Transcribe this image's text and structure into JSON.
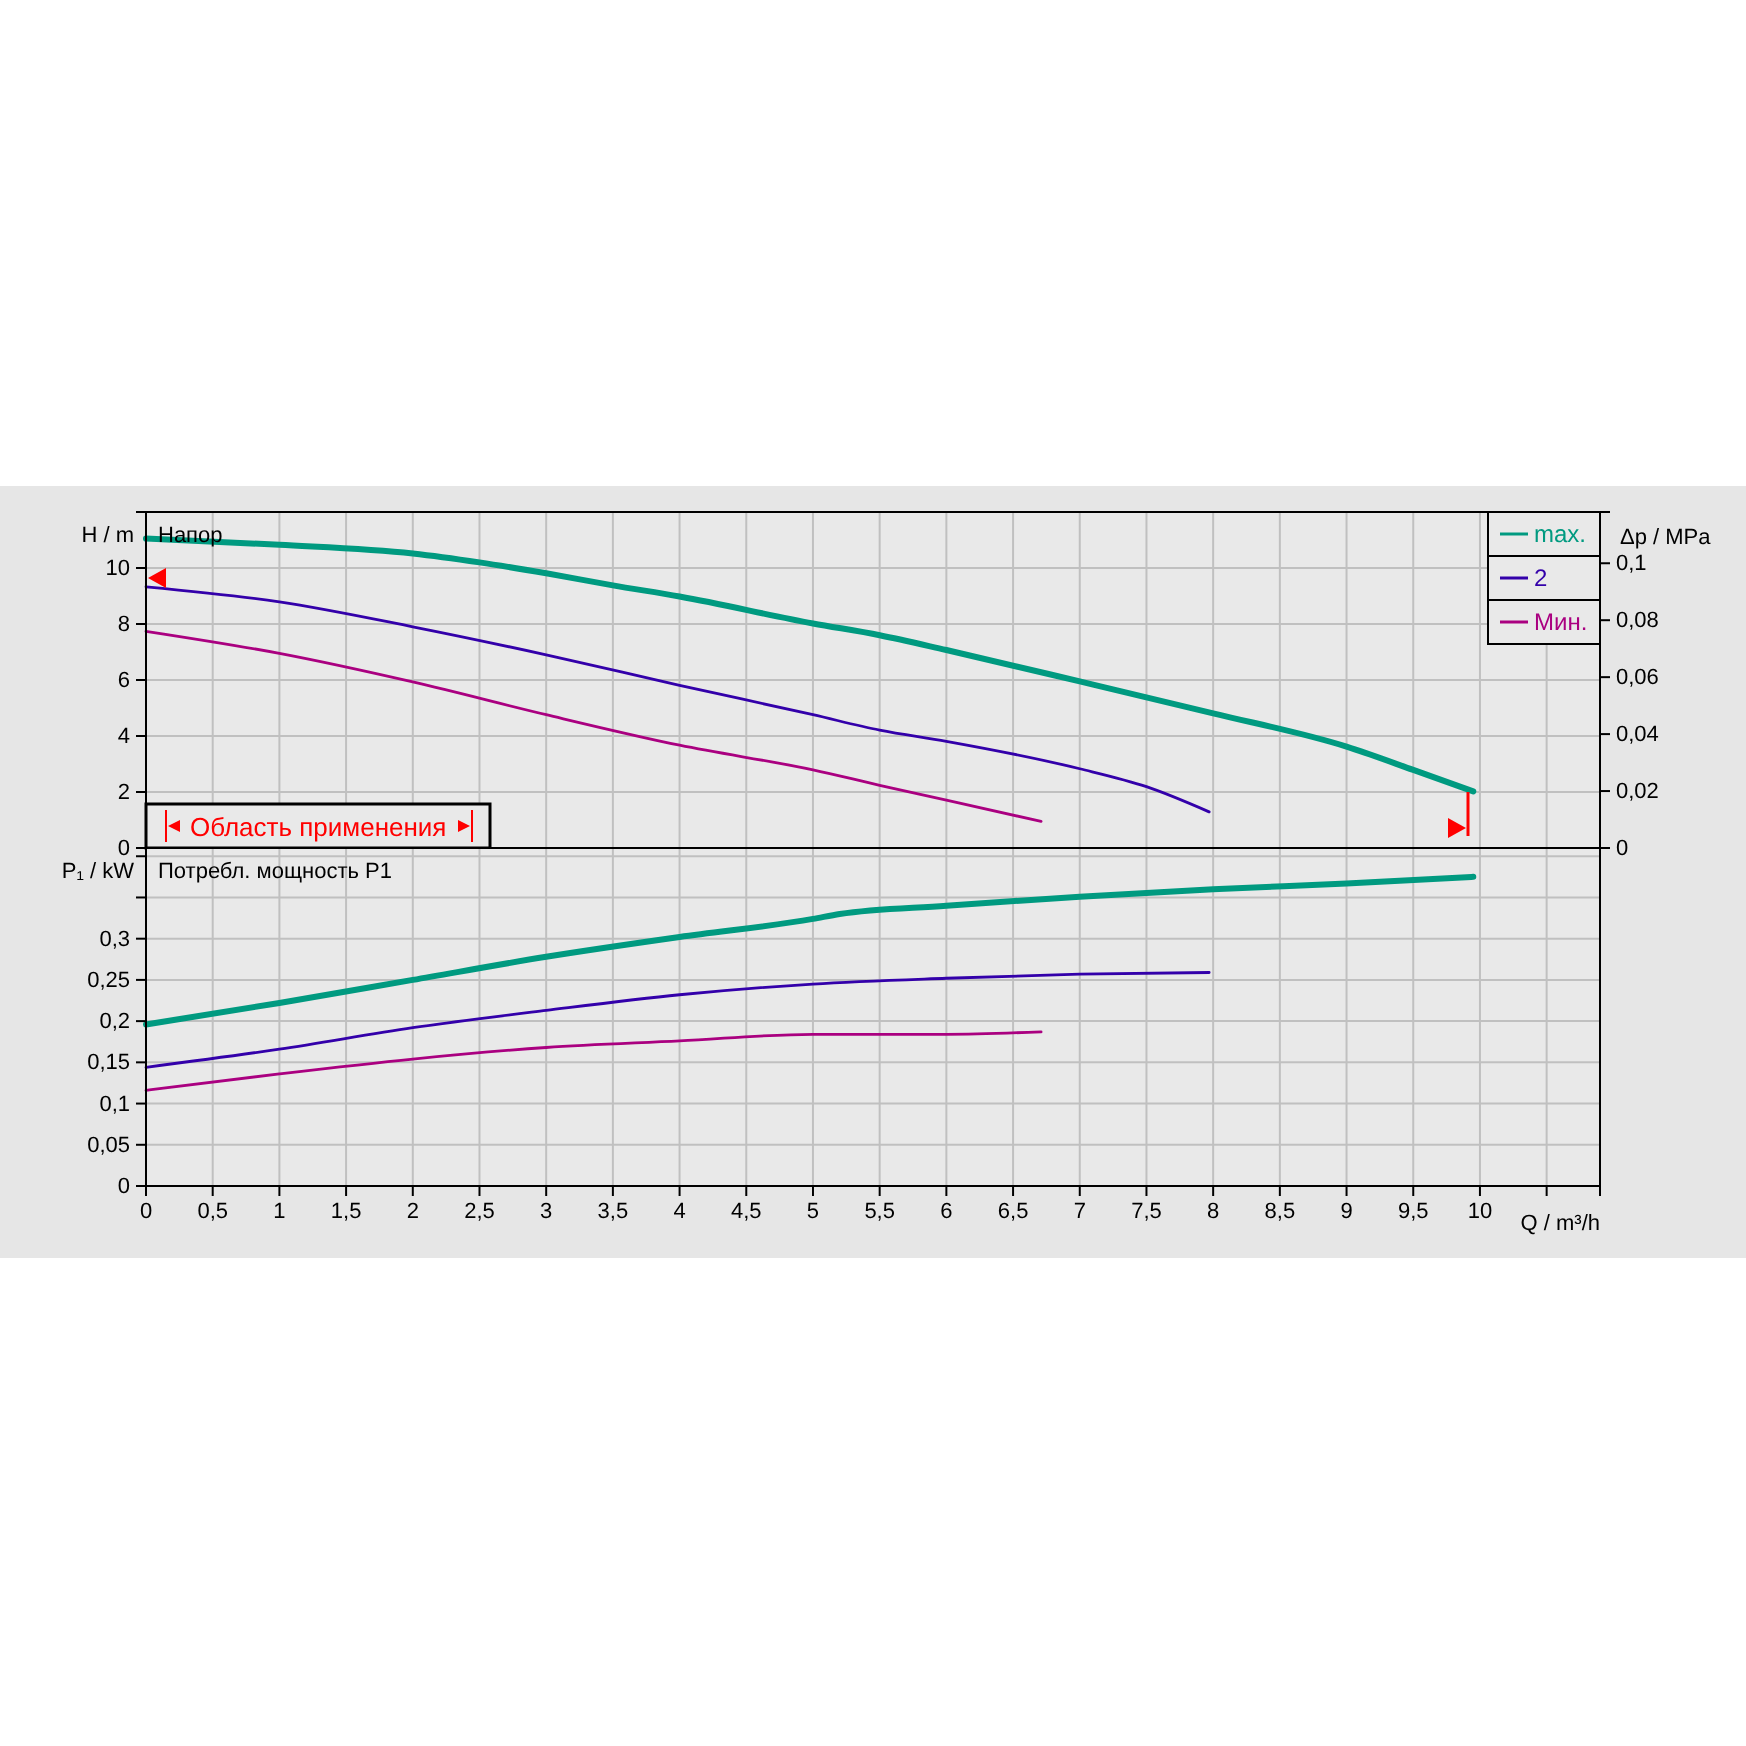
{
  "chart_data": [
    {
      "type": "line",
      "title": "Напор",
      "ylabel": "H / m",
      "y2label": "Δp / MPa",
      "xlim": [
        0,
        10.9
      ],
      "ylim": [
        0,
        12
      ],
      "yticks": [
        0,
        2,
        4,
        6,
        8,
        10
      ],
      "y2lim": [
        0,
        0.118
      ],
      "y2ticks": [
        0,
        {
          "value": 0.02,
          "label": "0,02"
        },
        {
          "value": 0.04,
          "label": "0,04"
        },
        {
          "value": 0.06,
          "label": "0,06"
        },
        {
          "value": 0.08,
          "label": "0,08"
        },
        {
          "value": 0.1,
          "label": "0,1"
        }
      ],
      "xticks": [
        {
          "value": 0,
          "label": null
        },
        {
          "value": 0.5,
          "label": null
        },
        {
          "value": 1,
          "label": null
        },
        {
          "value": 1.5,
          "label": null
        },
        {
          "value": 2,
          "label": null
        },
        {
          "value": 2.5,
          "label": null
        },
        {
          "value": 3,
          "label": null
        },
        {
          "value": 3.5,
          "label": null
        },
        {
          "value": 4,
          "label": null
        },
        {
          "value": 4.5,
          "label": null
        },
        {
          "value": 5,
          "label": null
        },
        {
          "value": 5.5,
          "label": null
        },
        {
          "value": 6,
          "label": null
        },
        {
          "value": 6.5,
          "label": null
        },
        {
          "value": 7,
          "label": null
        },
        {
          "value": 7.5,
          "label": null
        },
        {
          "value": 8,
          "label": null
        },
        {
          "value": 8.5,
          "label": null
        },
        {
          "value": 9,
          "label": null
        },
        {
          "value": 9.5,
          "label": null
        },
        {
          "value": 10,
          "label": null
        },
        {
          "value": 10.5,
          "label": null
        }
      ],
      "tick_labels": "y",
      "grid": true,
      "legend": "top right",
      "annotations": [
        "Область применения"
      ],
      "series": [
        {
          "name": "max.",
          "color": "#009a80",
          "x": [
            0,
            1,
            2,
            2.5,
            3,
            3.5,
            4,
            5,
            5.5,
            6,
            7,
            8,
            9,
            9.5,
            9.95
          ],
          "values": [
            11.05,
            10.83,
            10.52,
            10.2,
            9.81,
            9.38,
            8.98,
            8.02,
            7.6,
            7.07,
            5.95,
            4.81,
            3.62,
            2.79,
            2.02
          ]
        },
        {
          "name": "2",
          "color": "#3300aa",
          "x": [
            0,
            1,
            2,
            3,
            4,
            5,
            5.5,
            6,
            7,
            7.5,
            7.97
          ],
          "values": [
            9.33,
            8.79,
            7.9,
            6.9,
            5.81,
            4.76,
            4.21,
            3.81,
            2.83,
            2.19,
            1.29
          ]
        },
        {
          "name": "Мин.",
          "color": "#aa0080",
          "x": [
            0,
            1,
            2,
            3,
            4,
            5,
            5.5,
            6,
            6.71
          ],
          "values": [
            7.74,
            6.95,
            5.93,
            4.76,
            3.67,
            2.79,
            2.24,
            1.71,
            0.95
          ]
        }
      ]
    },
    {
      "type": "line",
      "title": "Потребл. мощность P1",
      "ylabel": "P₁ / kW",
      "xlabel": "Q / m³/h",
      "xlim": [
        0,
        10.9
      ],
      "ylim": [
        0,
        0.41
      ],
      "yticks": [
        0,
        {
          "value": 0.05,
          "label": "0,05"
        },
        {
          "value": 0.1,
          "label": "0,1"
        },
        {
          "value": 0.15,
          "label": "0,15"
        },
        {
          "value": 0.2,
          "label": "0,2"
        },
        {
          "value": 0.25,
          "label": "0,25"
        },
        {
          "value": 0.3,
          "label": "0,3"
        },
        {
          "value": 0.35,
          "label": null
        },
        {
          "value": 0.4,
          "label": null
        }
      ],
      "xticks": [
        0,
        {
          "value": 0.5,
          "label": "0,5"
        },
        1,
        {
          "value": 1.5,
          "label": "1,5"
        },
        2,
        {
          "value": 2.5,
          "label": "2,5"
        },
        3,
        {
          "value": 3.5,
          "label": "3,5"
        },
        4,
        {
          "value": 4.5,
          "label": "4,5"
        },
        5,
        {
          "value": 5.5,
          "label": "5,5"
        },
        6,
        {
          "value": 6.5,
          "label": "6,5"
        },
        7,
        {
          "value": 7.5,
          "label": "7,5"
        },
        8,
        {
          "value": 8.5,
          "label": "8,5"
        },
        9,
        {
          "value": 9.5,
          "label": "9,5"
        },
        10,
        {
          "value": 10.5,
          "label": null
        }
      ],
      "grid": true,
      "series": [
        {
          "color": "#009a80",
          "x": [
            0,
            1,
            2,
            3,
            4,
            5,
            5.2,
            6,
            7,
            8,
            9,
            9.95
          ],
          "values": [
            0.196,
            0.222,
            0.25,
            0.278,
            0.302,
            0.324,
            0.33,
            0.34,
            0.351,
            0.36,
            0.367,
            0.375
          ]
        },
        {
          "color": "#3300aa",
          "x": [
            0,
            1,
            2,
            3,
            4,
            5,
            6,
            7,
            7.97
          ],
          "values": [
            0.144,
            0.166,
            0.192,
            0.213,
            0.232,
            0.245,
            0.252,
            0.257,
            0.259
          ]
        },
        {
          "color": "#aa0080",
          "x": [
            0,
            1,
            2,
            3,
            4,
            5,
            6,
            6.71
          ],
          "values": [
            0.116,
            0.136,
            0.154,
            0.168,
            0.176,
            0.184,
            0.184,
            0.187
          ]
        }
      ]
    }
  ]
}
